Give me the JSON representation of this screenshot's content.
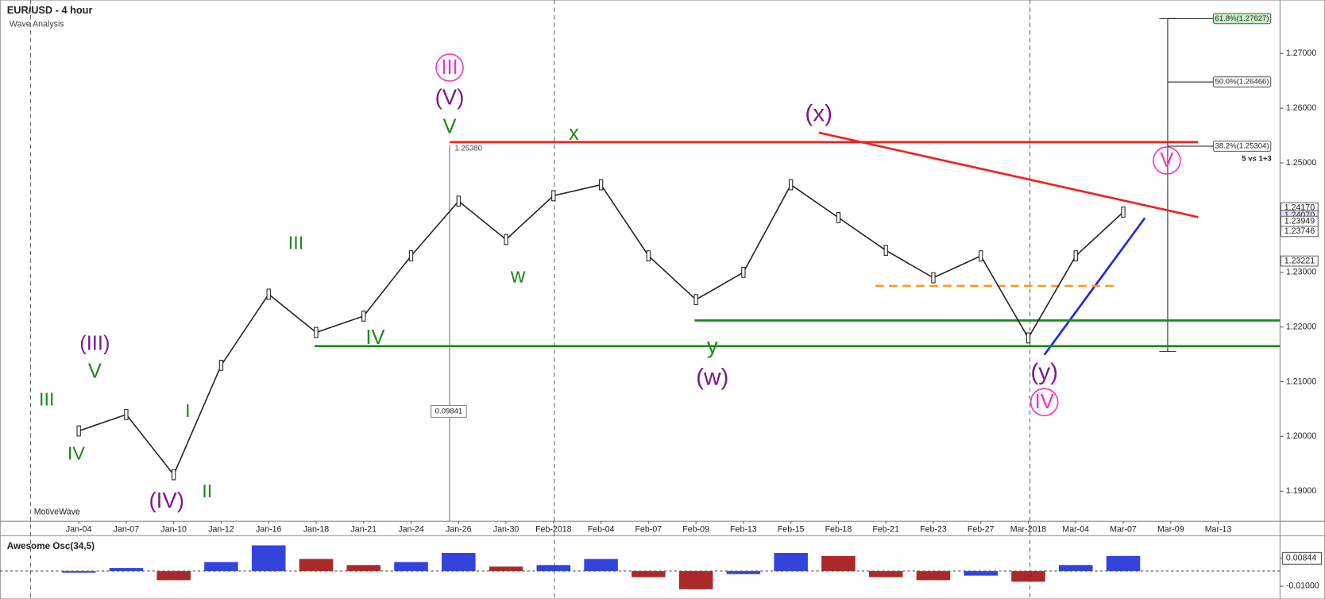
{
  "header": {
    "title": "EUR/USD - 4 hour",
    "subtitle": "Wave Analysis"
  },
  "chart_data": {
    "type": "line",
    "categories": [
      "Jan-04",
      "Jan-07",
      "Jan-10",
      "Jan-12",
      "Jan-16",
      "Jan-18",
      "Jan-21",
      "Jan-24",
      "Jan-26",
      "Jan-30",
      "Feb-2018",
      "Feb-04",
      "Feb-07",
      "Feb-09",
      "Feb-13",
      "Feb-15",
      "Feb-18",
      "Feb-21",
      "Feb-23",
      "Feb-27",
      "Mar-2018",
      "Mar-04",
      "Mar-07",
      "Mar-09",
      "Mar-13"
    ],
    "values": [
      1.201,
      1.204,
      1.193,
      1.213,
      1.226,
      1.219,
      1.222,
      1.233,
      1.243,
      1.236,
      1.244,
      1.246,
      1.233,
      1.225,
      1.23,
      1.246,
      1.24,
      1.234,
      1.229,
      1.233,
      1.218,
      1.233,
      1.241,
      null,
      null
    ],
    "color": "#222222",
    "ylim": [
      1.1848,
      1.279
    ],
    "yticks": [
      {
        "value": 1.19,
        "label": "1.19000"
      },
      {
        "value": 1.2,
        "label": "1.20000"
      },
      {
        "value": 1.21,
        "label": "1.21000"
      },
      {
        "value": 1.22,
        "label": "1.22000"
      },
      {
        "value": 1.23,
        "label": "1.23000"
      },
      {
        "value": 1.24,
        "label": "1.24000"
      },
      {
        "value": 1.25,
        "label": "1.25000"
      },
      {
        "value": 1.26,
        "label": "1.26000"
      },
      {
        "value": 1.27,
        "label": "1.27000"
      }
    ],
    "levels": [
      1.2538,
      1.2212,
      1.2165,
      1.2275
    ],
    "level_colors": [
      "#ee2222",
      "#1a8a1a",
      "#1a8a1a",
      "#f59a23"
    ]
  },
  "oscillator": {
    "type": "bar",
    "title": "Awesome Osc(34,5)",
    "values": [
      -0.001,
      0.002,
      -0.006,
      0.006,
      0.017,
      0.008,
      0.004,
      0.006,
      0.012,
      0.003,
      0.004,
      0.008,
      -0.004,
      -0.012,
      -0.002,
      0.012,
      0.01,
      -0.004,
      -0.006,
      -0.003,
      -0.007,
      0.004,
      0.01,
      null,
      null
    ],
    "up_color": "#3344dd",
    "down_color": "#aa2a2a",
    "ylim": [
      -0.0162,
      0.0212
    ],
    "yticks": [
      {
        "value": 0.00844,
        "label": "0.00844"
      },
      {
        "value": -0.01,
        "label": "-0.01000"
      }
    ]
  },
  "annotations": {
    "waves": [
      "III",
      "(V)",
      "V",
      "x",
      "w",
      "(x)",
      "V",
      "III",
      "IV",
      "y",
      "(w)",
      "(y)",
      "IV",
      "(III)",
      "V",
      "III",
      "IV",
      "I",
      "(IV)",
      "II"
    ],
    "fib": [
      "61.8%(1.27627)",
      "50.0%(1.26466)",
      "38.2%(1.25304)"
    ],
    "ratio": "5 vs 1+3",
    "price_labels": [
      "1.24170",
      "1.24070",
      "1.23949",
      "1.23746",
      "1.23221"
    ],
    "peak": "1.25380",
    "measure": "0.09841",
    "brand": "MotiveWave"
  }
}
